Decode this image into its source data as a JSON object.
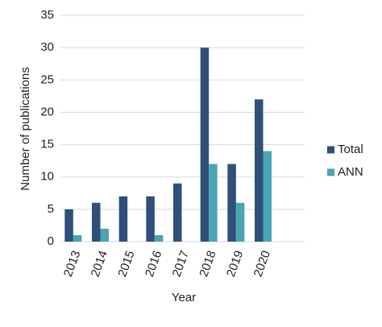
{
  "chart_data": {
    "type": "bar",
    "x_label": "Year",
    "y_label": "Number of publications",
    "categories": [
      "2013",
      "2014",
      "2015",
      "2016",
      "2017",
      "2018",
      "2019",
      "2020",
      null
    ],
    "series": [
      {
        "name": "Total",
        "color": "#2e5079",
        "values": [
          5,
          6,
          7,
          7,
          9,
          30,
          12,
          22,
          null
        ]
      },
      {
        "name": "ANN",
        "color": "#4aa5b5",
        "values": [
          1,
          2,
          0,
          1,
          0,
          12,
          6,
          14,
          null
        ]
      }
    ],
    "ylim": [
      0,
      35
    ],
    "yticks": [
      0,
      5,
      10,
      15,
      20,
      25,
      30,
      35
    ],
    "grid": true,
    "legend": "right"
  }
}
